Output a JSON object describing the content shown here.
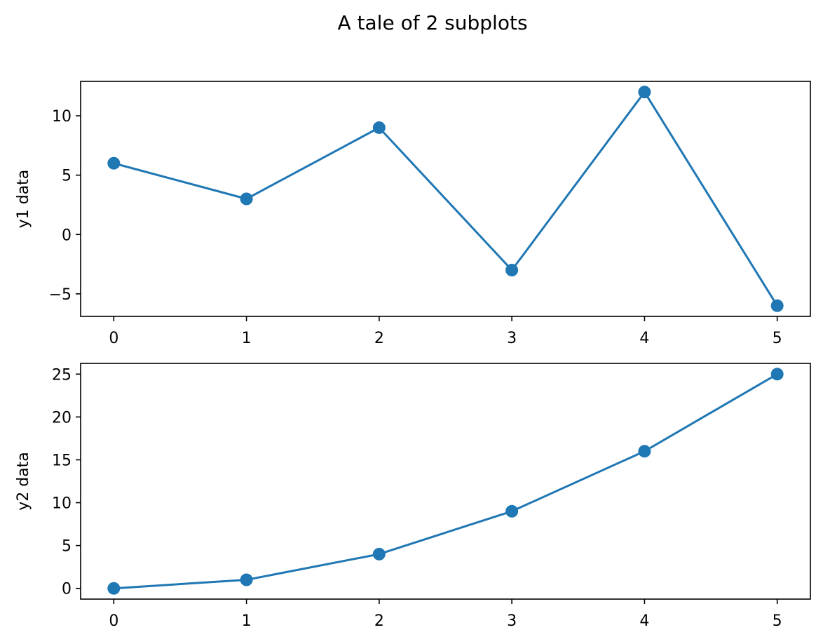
{
  "figure": {
    "title": "A tale of 2 subplots"
  },
  "chart_data": [
    {
      "type": "line",
      "marker": "circle",
      "color": "#1f77b4",
      "x": [
        0,
        1,
        2,
        3,
        4,
        5
      ],
      "y": [
        6,
        3,
        9,
        -3,
        12,
        -6
      ],
      "xlabel": "",
      "ylabel": "y1 data",
      "xlim": [
        -0.25,
        5.25
      ],
      "ylim": [
        -6.9,
        12.9
      ],
      "xticks": [
        0,
        1,
        2,
        3,
        4,
        5
      ],
      "yticks": [
        -5,
        0,
        5,
        10
      ],
      "xtick_labels": [
        "0",
        "1",
        "2",
        "3",
        "4",
        "5"
      ],
      "ytick_labels": [
        "−5",
        "0",
        "5",
        "10"
      ],
      "grid": false
    },
    {
      "type": "line",
      "marker": "circle",
      "color": "#1f77b4",
      "x": [
        0,
        1,
        2,
        3,
        4,
        5
      ],
      "y": [
        0,
        1,
        4,
        9,
        16,
        25
      ],
      "xlabel": "",
      "ylabel": "y2 data",
      "xlim": [
        -0.25,
        5.25
      ],
      "ylim": [
        -1.25,
        26.25
      ],
      "xticks": [
        0,
        1,
        2,
        3,
        4,
        5
      ],
      "yticks": [
        0,
        5,
        10,
        15,
        20,
        25
      ],
      "xtick_labels": [
        "0",
        "1",
        "2",
        "3",
        "4",
        "5"
      ],
      "ytick_labels": [
        "0",
        "5",
        "10",
        "15",
        "20",
        "25"
      ],
      "grid": false
    }
  ]
}
